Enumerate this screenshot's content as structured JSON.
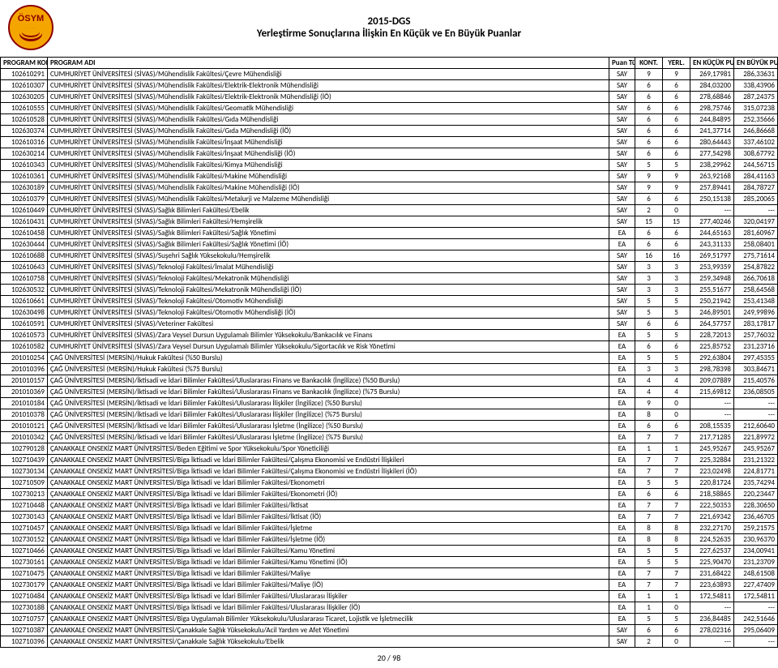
{
  "header": {
    "title1": "2015-DGS",
    "title2": "Yerleştirme Sonuçlarına İlişkin En Küçük ve En Büyük Puanlar",
    "logo_text": "ÖSYM",
    "logo_bg": "#f5a500",
    "logo_fg": "#8b0000"
  },
  "table": {
    "columns": [
      "PROGRAM KODU",
      "PROGRAM ADI",
      "Puan Türü",
      "KONT.",
      "YERL.",
      "EN KÜÇÜK PUAN",
      "EN BÜYÜK PUAN"
    ],
    "rows": [
      [
        "102610291",
        "CUMHURİYET ÜNİVERSİTESİ (SİVAS)/Mühendislik Fakültesi/Çevre Mühendisliği",
        "SAY",
        "9",
        "9",
        "269,17981",
        "286,33631"
      ],
      [
        "102610307",
        "CUMHURİYET ÜNİVERSİTESİ (SİVAS)/Mühendislik Fakültesi/Elektrik-Elektronik Mühendisliği",
        "SAY",
        "6",
        "6",
        "284,03200",
        "338,43906"
      ],
      [
        "102630205",
        "CUMHURİYET ÜNİVERSİTESİ (SİVAS)/Mühendislik Fakültesi/Elektrik-Elektronik Mühendisliği (İÖ)",
        "SAY",
        "6",
        "6",
        "278,68846",
        "287,24375"
      ],
      [
        "102610555",
        "CUMHURİYET ÜNİVERSİTESİ (SİVAS)/Mühendislik Fakültesi/Geomatik Mühendisliği",
        "SAY",
        "6",
        "6",
        "298,75746",
        "315,07238"
      ],
      [
        "102610528",
        "CUMHURİYET ÜNİVERSİTESİ (SİVAS)/Mühendislik Fakültesi/Gıda Mühendisliği",
        "SAY",
        "6",
        "6",
        "244,84895",
        "252,35666"
      ],
      [
        "102630374",
        "CUMHURİYET ÜNİVERSİTESİ (SİVAS)/Mühendislik Fakültesi/Gıda Mühendisliği (İÖ)",
        "SAY",
        "6",
        "6",
        "241,37714",
        "246,86668"
      ],
      [
        "102610316",
        "CUMHURİYET ÜNİVERSİTESİ (SİVAS)/Mühendislik Fakültesi/İnşaat Mühendisliği",
        "SAY",
        "6",
        "6",
        "280,64443",
        "337,46102"
      ],
      [
        "102630214",
        "CUMHURİYET ÜNİVERSİTESİ (SİVAS)/Mühendislik Fakültesi/İnşaat Mühendisliği (İÖ)",
        "SAY",
        "6",
        "6",
        "277,54298",
        "308,67792"
      ],
      [
        "102610343",
        "CUMHURİYET ÜNİVERSİTESİ (SİVAS)/Mühendislik Fakültesi/Kimya Mühendisliği",
        "SAY",
        "5",
        "5",
        "238,29962",
        "244,56715"
      ],
      [
        "102610361",
        "CUMHURİYET ÜNİVERSİTESİ (SİVAS)/Mühendislik Fakültesi/Makine Mühendisliği",
        "SAY",
        "9",
        "9",
        "263,92168",
        "284,41163"
      ],
      [
        "102630189",
        "CUMHURİYET ÜNİVERSİTESİ (SİVAS)/Mühendislik Fakültesi/Makine Mühendisliği (İÖ)",
        "SAY",
        "9",
        "9",
        "257,89441",
        "284,78727"
      ],
      [
        "102610379",
        "CUMHURİYET ÜNİVERSİTESİ (SİVAS)/Mühendislik Fakültesi/Metalurji ve Malzeme Mühendisliği",
        "SAY",
        "6",
        "6",
        "250,15138",
        "285,20065"
      ],
      [
        "102610449",
        "CUMHURİYET ÜNİVERSİTESİ (SİVAS)/Sağlık Bilimleri Fakültesi/Ebelik",
        "SAY",
        "2",
        "0",
        "---",
        "---"
      ],
      [
        "102610431",
        "CUMHURİYET ÜNİVERSİTESİ (SİVAS)/Sağlık Bilimleri Fakültesi/Hemşirelik",
        "SAY",
        "15",
        "15",
        "277,40246",
        "320,04197"
      ],
      [
        "102610458",
        "CUMHURİYET ÜNİVERSİTESİ (SİVAS)/Sağlık Bilimleri Fakültesi/Sağlık Yönetimi",
        "EA",
        "6",
        "6",
        "244,65163",
        "281,60967"
      ],
      [
        "102630444",
        "CUMHURİYET ÜNİVERSİTESİ (SİVAS)/Sağlık Bilimleri Fakültesi/Sağlık Yönetimi (İÖ)",
        "EA",
        "6",
        "6",
        "243,31133",
        "258,08401"
      ],
      [
        "102610688",
        "CUMHURİYET ÜNİVERSİTESİ (SİVAS)/Suşehri Sağlık Yüksekokulu/Hemşirelik",
        "SAY",
        "16",
        "16",
        "269,51797",
        "275,71614"
      ],
      [
        "102610643",
        "CUMHURİYET ÜNİVERSİTESİ (SİVAS)/Teknoloji Fakültesi/İmalat Mühendisliği",
        "SAY",
        "3",
        "3",
        "253,99359",
        "254,87822"
      ],
      [
        "102610758",
        "CUMHURİYET ÜNİVERSİTESİ (SİVAS)/Teknoloji Fakültesi/Mekatronik Mühendisliği",
        "SAY",
        "3",
        "3",
        "259,34948",
        "266,70618"
      ],
      [
        "102630532",
        "CUMHURİYET ÜNİVERSİTESİ (SİVAS)/Teknoloji Fakültesi/Mekatronik Mühendisliği (İÖ)",
        "SAY",
        "3",
        "3",
        "255,51677",
        "258,64568"
      ],
      [
        "102610661",
        "CUMHURİYET ÜNİVERSİTESİ (SİVAS)/Teknoloji Fakültesi/Otomotiv Mühendisliği",
        "SAY",
        "5",
        "5",
        "250,21942",
        "253,41348"
      ],
      [
        "102630498",
        "CUMHURİYET ÜNİVERSİTESİ (SİVAS)/Teknoloji Fakültesi/Otomotiv Mühendisliği (İÖ)",
        "SAY",
        "5",
        "5",
        "246,89501",
        "249,99896"
      ],
      [
        "102610591",
        "CUMHURİYET ÜNİVERSİTESİ (SİVAS)/Veteriner Fakültesi",
        "SAY",
        "6",
        "6",
        "264,57757",
        "283,17817"
      ],
      [
        "102610573",
        "CUMHURİYET ÜNİVERSİTESİ (SİVAS)/Zara Veysel Dursun Uygulamalı Bilimler Yüksekokulu/Bankacılık ve Finans",
        "EA",
        "5",
        "5",
        "228,72013",
        "257,76032"
      ],
      [
        "102610582",
        "CUMHURİYET ÜNİVERSİTESİ (SİVAS)/Zara Veysel Dursun Uygulamalı Bilimler Yüksekokulu/Sigortacılık ve Risk Yönetimi",
        "EA",
        "6",
        "6",
        "225,85752",
        "231,23716"
      ],
      [
        "201010254",
        "ÇAĞ ÜNİVERSİTESİ (MERSİN)/Hukuk Fakültesi (%50 Burslu)",
        "EA",
        "5",
        "5",
        "292,63804",
        "297,45355"
      ],
      [
        "201010396",
        "ÇAĞ ÜNİVERSİTESİ (MERSİN)/Hukuk Fakültesi (%75 Burslu)",
        "EA",
        "3",
        "3",
        "298,78398",
        "303,84671"
      ],
      [
        "201010157",
        "ÇAĞ ÜNİVERSİTESİ (MERSİN)/İktisadi ve İdari Bilimler Fakültesi/Uluslararası Finans ve Bankacılık (İngilizce) (%50 Burslu)",
        "EA",
        "4",
        "4",
        "209,07889",
        "215,40576"
      ],
      [
        "201010369",
        "ÇAĞ ÜNİVERSİTESİ (MERSİN)/İktisadi ve İdari Bilimler Fakültesi/Uluslararası Finans ve Bankacılık (İngilizce) (%75 Burslu)",
        "EA",
        "4",
        "4",
        "215,69812",
        "236,08505"
      ],
      [
        "201010184",
        "ÇAĞ ÜNİVERSİTESİ (MERSİN)/İktisadi ve İdari Bilimler Fakültesi/Uluslararası İlişkiler (İngilizce) (%50 Burslu)",
        "EA",
        "9",
        "0",
        "---",
        "---"
      ],
      [
        "201010378",
        "ÇAĞ ÜNİVERSİTESİ (MERSİN)/İktisadi ve İdari Bilimler Fakültesi/Uluslararası İlişkiler (İngilizce) (%75 Burslu)",
        "EA",
        "8",
        "0",
        "---",
        "---"
      ],
      [
        "201010121",
        "ÇAĞ ÜNİVERSİTESİ (MERSİN)/İktisadi ve İdari Bilimler Fakültesi/Uluslararası İşletme (İngilizce) (%50 Burslu)",
        "EA",
        "6",
        "6",
        "208,15535",
        "212,60640"
      ],
      [
        "201010342",
        "ÇAĞ ÜNİVERSİTESİ (MERSİN)/İktisadi ve İdari Bilimler Fakültesi/Uluslararası İşletme (İngilizce) (%75 Burslu)",
        "EA",
        "7",
        "7",
        "217,71285",
        "221,89972"
      ],
      [
        "102790128",
        "ÇANAKKALE ONSEKİZ MART ÜNİVERSİTESİ/Beden Eğitimi ve Spor Yüksekokulu/Spor Yöneticiliği",
        "EA",
        "1",
        "1",
        "245,95267",
        "245,95267"
      ],
      [
        "102710439",
        "ÇANAKKALE ONSEKİZ MART ÜNİVERSİTESİ/Biga İktisadi ve İdari Bilimler Fakültesi/Çalışma Ekonomisi ve Endüstri İlişkileri",
        "EA",
        "7",
        "7",
        "225,32884",
        "231,21322"
      ],
      [
        "102730134",
        "ÇANAKKALE ONSEKİZ MART ÜNİVERSİTESİ/Biga İktisadi ve İdari Bilimler Fakültesi/Çalışma Ekonomisi ve Endüstri İlişkileri (İÖ)",
        "EA",
        "7",
        "7",
        "223,02498",
        "224,81771"
      ],
      [
        "102710509",
        "ÇANAKKALE ONSEKİZ MART ÜNİVERSİTESİ/Biga İktisadi ve İdari Bilimler Fakültesi/Ekonometri",
        "EA",
        "5",
        "5",
        "220,81724",
        "235,74294"
      ],
      [
        "102730213",
        "ÇANAKKALE ONSEKİZ MART ÜNİVERSİTESİ/Biga İktisadi ve İdari Bilimler Fakültesi/Ekonometri (İÖ)",
        "EA",
        "6",
        "6",
        "218,58865",
        "220,23447"
      ],
      [
        "102710448",
        "ÇANAKKALE ONSEKİZ MART ÜNİVERSİTESİ/Biga İktisadi ve İdari Bilimler Fakültesi/İktisat",
        "EA",
        "7",
        "7",
        "222,50353",
        "228,30650"
      ],
      [
        "102730143",
        "ÇANAKKALE ONSEKİZ MART ÜNİVERSİTESİ/Biga İktisadi ve İdari Bilimler Fakültesi/İktisat (İÖ)",
        "EA",
        "7",
        "7",
        "221,69342",
        "236,46705"
      ],
      [
        "102710457",
        "ÇANAKKALE ONSEKİZ MART ÜNİVERSİTESİ/Biga İktisadi ve İdari Bilimler Fakültesi/İşletme",
        "EA",
        "8",
        "8",
        "232,27170",
        "259,21575"
      ],
      [
        "102730152",
        "ÇANAKKALE ONSEKİZ MART ÜNİVERSİTESİ/Biga İktisadi ve İdari Bilimler Fakültesi/İşletme (İÖ)",
        "EA",
        "8",
        "8",
        "224,52635",
        "230,96370"
      ],
      [
        "102710466",
        "ÇANAKKALE ONSEKİZ MART ÜNİVERSİTESİ/Biga İktisadi ve İdari Bilimler Fakültesi/Kamu Yönetimi",
        "EA",
        "5",
        "5",
        "227,62537",
        "234,00941"
      ],
      [
        "102730161",
        "ÇANAKKALE ONSEKİZ MART ÜNİVERSİTESİ/Biga İktisadi ve İdari Bilimler Fakültesi/Kamu Yönetimi (İÖ)",
        "EA",
        "5",
        "5",
        "225,90470",
        "231,23709"
      ],
      [
        "102710475",
        "ÇANAKKALE ONSEKİZ MART ÜNİVERSİTESİ/Biga İktisadi ve İdari Bilimler Fakültesi/Maliye",
        "EA",
        "7",
        "7",
        "231,68422",
        "248,61508"
      ],
      [
        "102730179",
        "ÇANAKKALE ONSEKİZ MART ÜNİVERSİTESİ/Biga İktisadi ve İdari Bilimler Fakültesi/Maliye (İÖ)",
        "EA",
        "7",
        "7",
        "223,63893",
        "227,47409"
      ],
      [
        "102710484",
        "ÇANAKKALE ONSEKİZ MART ÜNİVERSİTESİ/Biga İktisadi ve İdari Bilimler Fakültesi/Uluslararası İlişkiler",
        "EA",
        "1",
        "1",
        "172,54811",
        "172,54811"
      ],
      [
        "102730188",
        "ÇANAKKALE ONSEKİZ MART ÜNİVERSİTESİ/Biga İktisadi ve İdari Bilimler Fakültesi/Uluslararası İlişkiler (İÖ)",
        "EA",
        "1",
        "0",
        "---",
        "---"
      ],
      [
        "102710757",
        "ÇANAKKALE ONSEKİZ MART ÜNİVERSİTESİ/Biga Uygulamalı Bilimler Yüksekokulu/Uluslararası Ticaret, Lojistik ve İşletmecilik",
        "EA",
        "5",
        "5",
        "236,84485",
        "242,51646"
      ],
      [
        "102710387",
        "ÇANAKKALE ONSEKİZ MART ÜNİVERSİTESİ/Çanakkale Sağlık Yüksekokulu/Acil Yardım ve Afet Yönetimi",
        "SAY",
        "6",
        "6",
        "278,02316",
        "295,06409"
      ],
      [
        "102710396",
        "ÇANAKKALE ONSEKİZ MART ÜNİVERSİTESİ/Çanakkale Sağlık Yüksekokulu/Ebelik",
        "SAY",
        "2",
        "0",
        "---",
        "---"
      ]
    ]
  },
  "footer": {
    "page": "20 / 98"
  }
}
